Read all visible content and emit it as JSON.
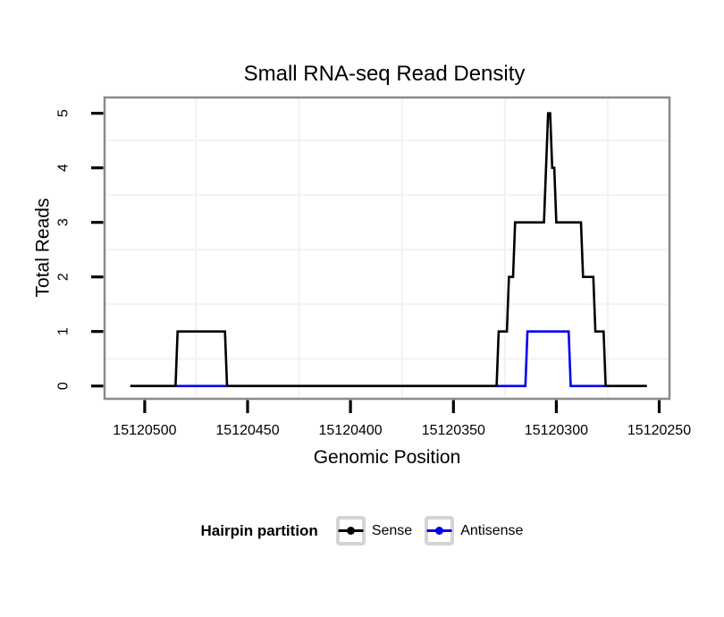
{
  "chart_data": {
    "type": "line",
    "subtype": "step-coverage",
    "title": "Small RNA-seq Read Density",
    "xlabel": "Genomic Position",
    "ylabel": "Total Reads",
    "x_tick_labels": [
      "15120500",
      "15120450",
      "15120400",
      "15120350",
      "15120300",
      "15120250"
    ],
    "x_tick_values": [
      15120500,
      15120450,
      15120400,
      15120350,
      15120300,
      15120250
    ],
    "y_tick_labels": [
      "0",
      "1",
      "2",
      "3",
      "4",
      "5"
    ],
    "y_tick_values": [
      0,
      1,
      2,
      3,
      4,
      5
    ],
    "x_axis_range": [
      15120519.5,
      15120245
    ],
    "x_axis_reversed": true,
    "y_axis_range": [
      -0.235,
      5.29
    ],
    "ylim": [
      0,
      5
    ],
    "background_color": "#ffffff",
    "frame_color": "#8a8a8a",
    "tick_color": "#000000",
    "grid": {
      "color": "#f2f2f2",
      "x_minor": [
        15120475,
        15120425,
        15120375,
        15120325,
        15120275
      ],
      "y_minor": [
        0.5,
        1.5,
        2.5,
        3.5,
        4.5
      ]
    },
    "legend": {
      "title": "Hairpin partition",
      "position": "bottom-center",
      "key_border_color": "#d4d4d4",
      "entries": [
        {
          "label": "Sense",
          "color": "#000000"
        },
        {
          "label": "Antisense",
          "color": "#0000EE"
        }
      ]
    },
    "series": [
      {
        "name": "Sense",
        "color": "#000000",
        "draw_order": 2,
        "steps": [
          [
            15120507,
            0
          ],
          [
            15120484,
            1
          ],
          [
            15120460,
            0
          ],
          [
            15120328,
            1
          ],
          [
            15120323,
            2
          ],
          [
            15120320,
            3
          ],
          [
            15120305,
            4
          ],
          [
            15120304,
            5
          ],
          [
            15120302,
            4
          ],
          [
            15120300,
            3
          ],
          [
            15120287,
            2
          ],
          [
            15120281,
            1
          ],
          [
            15120276,
            0
          ],
          [
            15120256,
            0
          ]
        ]
      },
      {
        "name": "Antisense",
        "color": "#0000EE",
        "draw_order": 1,
        "steps": [
          [
            15120507,
            0
          ],
          [
            15120314,
            1
          ],
          [
            15120293,
            0
          ],
          [
            15120256,
            0
          ]
        ]
      }
    ]
  }
}
